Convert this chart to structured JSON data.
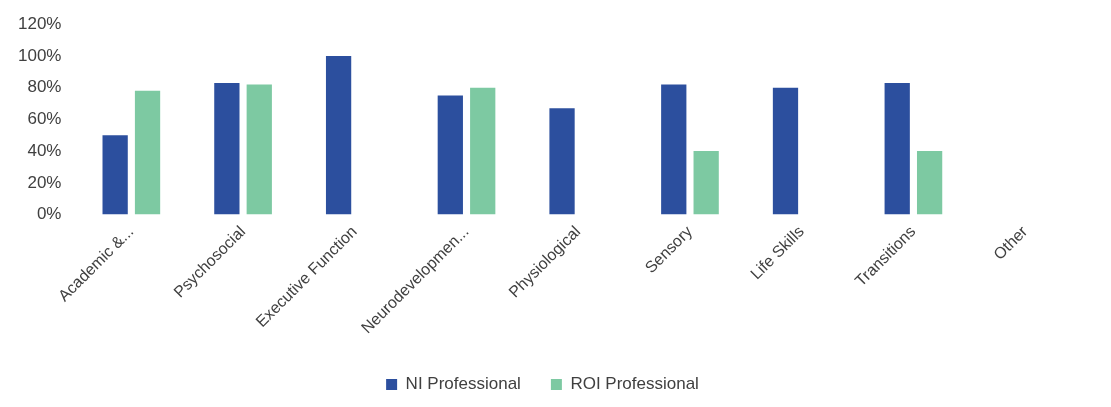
{
  "chart_data": {
    "type": "bar",
    "categories": [
      "Academic &...",
      "Psychosocial",
      "Executive Function",
      "Neurodevelopmen...",
      "Physiological",
      "Sensory",
      "Life Skills",
      "Transitions",
      "Other"
    ],
    "series": [
      {
        "name": "NI Professional",
        "color": "#2c4f9e",
        "values": [
          50,
          83,
          100,
          75,
          67,
          82,
          80,
          83,
          null
        ]
      },
      {
        "name": "ROI Professional",
        "color": "#7dc9a2",
        "values": [
          78,
          82,
          null,
          80,
          null,
          40,
          null,
          40,
          null
        ]
      }
    ],
    "ylim": [
      0,
      120
    ],
    "yticks": [
      {
        "value": 0,
        "label": "0%"
      },
      {
        "value": 20,
        "label": "20%"
      },
      {
        "value": 40,
        "label": "40%"
      },
      {
        "value": 60,
        "label": "60%"
      },
      {
        "value": 80,
        "label": "80%"
      },
      {
        "value": 100,
        "label": "100%"
      },
      {
        "value": 120,
        "label": "120%"
      }
    ],
    "grid": false,
    "legend": "bottom"
  }
}
